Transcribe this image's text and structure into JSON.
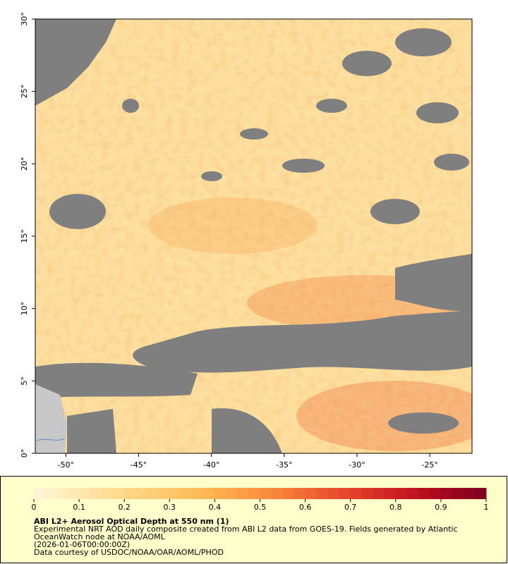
{
  "chart_data": {
    "type": "map",
    "title": "ABI L2+ Aerosol Optical Depth at 550 nm (1)",
    "notes": [
      "Experimental NRT AOD daily composite created from ABI L2 data from GOES-19. Fields generated by Atlantic",
      "OceanWatch node at NOAA/AOML",
      "(2026-01-06T00:00:00Z)",
      "Data courtesy of USDOC/NOAA/OAR/AOML/PHOD"
    ],
    "xlim": [
      -52.1,
      -22.1
    ],
    "ylim": [
      0,
      30
    ],
    "xticks": [
      {
        "value": -50,
        "label": "-50°"
      },
      {
        "value": -45,
        "label": "-45°"
      },
      {
        "value": -40,
        "label": "-40°"
      },
      {
        "value": -35,
        "label": "-35°"
      },
      {
        "value": -30,
        "label": "-30°"
      },
      {
        "value": -25,
        "label": "-25°"
      }
    ],
    "yticks": [
      {
        "value": 0,
        "label": "0°"
      },
      {
        "value": 5,
        "label": "5°"
      },
      {
        "value": 10,
        "label": "10°"
      },
      {
        "value": 15,
        "label": "15°"
      },
      {
        "value": 20,
        "label": "20°"
      },
      {
        "value": 25,
        "label": "25°"
      },
      {
        "value": 30,
        "label": "30°"
      }
    ],
    "colorbar": {
      "lim": [
        0,
        1
      ],
      "ticks": [
        0,
        0.1,
        0.2,
        0.3,
        0.4,
        0.5,
        0.6,
        0.7,
        0.8,
        0.9,
        1
      ],
      "colors": [
        "#fff6d6",
        "#ffe8b0",
        "#ffd88a",
        "#ffc86a",
        "#ffb24f",
        "#fb923f",
        "#f26b33",
        "#e3432a",
        "#cc1f22",
        "#a8081f",
        "#7d0021"
      ]
    }
  }
}
